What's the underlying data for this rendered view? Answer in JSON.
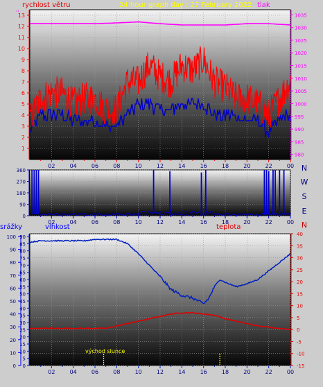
{
  "colors": {
    "background": "#cdcdcd",
    "wind": "#ff0000",
    "wind_secondary": "#0000c8",
    "pressure": "#ff00ff",
    "direction": "#0000c8",
    "humidity": "#0020c0",
    "temperature": "#e00000",
    "rain_axis": "#0000ff",
    "title": "#ffff00",
    "sunrise": "#ffff00",
    "compass": "#000080"
  },
  "chart_data": [
    {
      "type": "line",
      "title": "24 hour graph day : 27 February 2022",
      "left_label": "rychlost větru",
      "right_label": "tlak",
      "x_ticks": [
        "02",
        "04",
        "06",
        "08",
        "10",
        "12",
        "14",
        "16",
        "18",
        "20",
        "22",
        "00"
      ],
      "x_range": [
        0,
        24
      ],
      "y_left_ticks": [
        "1",
        "2",
        "3",
        "4",
        "5",
        "6",
        "7",
        "8",
        "9",
        "10",
        "11",
        "12",
        "13"
      ],
      "y_left_range": [
        0,
        13.5
      ],
      "y_right_ticks": [
        "980",
        "985",
        "990",
        "995",
        "1000",
        "1005",
        "1010",
        "1015",
        "1020",
        "1025",
        "1030",
        "1035"
      ],
      "y_right_range": [
        978,
        1037
      ],
      "grid": true,
      "series": [
        {
          "key": "gust",
          "x": [
            0,
            1,
            2,
            3,
            4,
            5,
            6,
            7,
            8,
            9,
            10,
            11,
            12,
            13,
            14,
            15,
            16,
            17,
            18,
            19,
            20,
            21,
            22,
            23,
            24
          ],
          "values": [
            3.5,
            5.5,
            6,
            6,
            5,
            5.5,
            5.5,
            4.5,
            4.5,
            7,
            7,
            8.5,
            7.5,
            7,
            8.5,
            8,
            9,
            7,
            6.5,
            5.5,
            5.5,
            5,
            4,
            5.5,
            7
          ]
        },
        {
          "key": "average",
          "x": [
            0,
            1,
            2,
            3,
            4,
            5,
            6,
            7,
            8,
            9,
            10,
            11,
            12,
            13,
            14,
            15,
            16,
            17,
            18,
            19,
            20,
            21,
            22,
            23,
            24
          ],
          "values": [
            2.5,
            4,
            4,
            4,
            3.5,
            3.5,
            3.5,
            3,
            3,
            4,
            5,
            5,
            4.5,
            4.5,
            5,
            5,
            5,
            4,
            4,
            4,
            3.5,
            3.5,
            2.5,
            3.5,
            4
          ]
        },
        {
          "key": "pressure",
          "x": [
            0,
            2,
            4,
            6,
            8,
            10,
            12,
            14,
            16,
            18,
            20,
            22,
            24
          ],
          "values": [
            1031.5,
            1031.5,
            1031.5,
            1031.5,
            1031.8,
            1032.2,
            1031.5,
            1031,
            1031,
            1031,
            1031.5,
            1031.5,
            1031
          ]
        }
      ]
    },
    {
      "type": "scatter",
      "x_ticks": [
        "02",
        "04",
        "06",
        "08",
        "10",
        "12",
        "14",
        "16",
        "18",
        "20",
        "22",
        "00"
      ],
      "x_range": [
        0,
        24
      ],
      "y_ticks": [
        "0",
        "90",
        "180",
        "270",
        "360"
      ],
      "y_range": [
        0,
        360
      ],
      "compass_labels": [
        "N",
        "W",
        "S",
        "E",
        "N"
      ],
      "grid": true,
      "series": [
        {
          "key": "direction",
          "x": [
            0.2,
            0.4,
            0.6,
            0.8,
            2,
            4,
            6,
            8,
            10,
            11.4,
            12,
            12.9,
            13,
            14,
            15,
            15.8,
            16,
            16.2,
            18,
            20,
            21.6,
            21.8,
            22,
            22.4,
            22.6,
            23,
            23.4,
            24
          ],
          "values": [
            360,
            360,
            360,
            360,
            10,
            10,
            15,
            15,
            20,
            360,
            30,
            350,
            40,
            40,
            30,
            340,
            50,
            360,
            15,
            10,
            360,
            360,
            350,
            360,
            360,
            360,
            360,
            15
          ]
        }
      ]
    },
    {
      "type": "line",
      "left_label": "srážky",
      "hum_label": "vlhkost",
      "right_label": "teplota",
      "annotation": "východ slunce",
      "x_ticks": [
        "02",
        "04",
        "06",
        "08",
        "10",
        "12",
        "14",
        "16",
        "18",
        "20",
        "22",
        "00"
      ],
      "x_range": [
        0,
        24
      ],
      "y_rain_ticks": [
        "0",
        "10",
        "20",
        "30",
        "40",
        "50",
        "60",
        "70",
        "80",
        "90",
        "100"
      ],
      "y_rain_range": [
        0,
        100
      ],
      "y_hum_ticks": [
        "0",
        "5",
        "10",
        "15",
        "20",
        "25",
        "30",
        "35",
        "40",
        "45",
        "50",
        "55",
        "60",
        "65",
        "70",
        "75",
        "80",
        "85",
        "90"
      ],
      "y_hum_range": [
        0,
        90
      ],
      "y_temp_ticks": [
        "-15",
        "-10",
        "-5",
        "0",
        "5",
        "10",
        "15",
        "20",
        "25",
        "30",
        "35",
        "40"
      ],
      "y_temp_range": [
        -15,
        40
      ],
      "grid": true,
      "series": [
        {
          "key": "humidity",
          "x": [
            0,
            1,
            2,
            3,
            4,
            5,
            6,
            7,
            8,
            9,
            10,
            11,
            12,
            13,
            14,
            15,
            15.5,
            16,
            16.5,
            17,
            17.5,
            18,
            19,
            20,
            21,
            22,
            23,
            24
          ],
          "values": [
            86,
            87,
            87,
            87,
            87,
            87,
            88,
            88,
            88,
            85,
            78,
            70,
            62,
            53,
            49,
            47,
            45,
            43,
            47,
            55,
            60,
            58,
            55,
            57,
            60,
            66,
            72,
            78
          ]
        },
        {
          "key": "temperature",
          "x": [
            0,
            1,
            2,
            3,
            4,
            5,
            6,
            7,
            8,
            9,
            10,
            11,
            12,
            13,
            14,
            15,
            16,
            17,
            18,
            19,
            20,
            21,
            22,
            23,
            24
          ],
          "values": [
            0.5,
            0.5,
            0.5,
            0.5,
            0.5,
            0.5,
            0.5,
            0.5,
            1.5,
            2.5,
            3.5,
            4.5,
            5.5,
            6.5,
            7,
            7,
            6.5,
            6,
            4.5,
            3.5,
            2.5,
            1.5,
            1,
            0.5,
            0
          ]
        },
        {
          "key": "sunrise",
          "x": [
            6.8
          ],
          "values": [
            0
          ]
        },
        {
          "key": "sunset",
          "x": [
            17.5
          ],
          "values": [
            0
          ]
        }
      ]
    }
  ]
}
